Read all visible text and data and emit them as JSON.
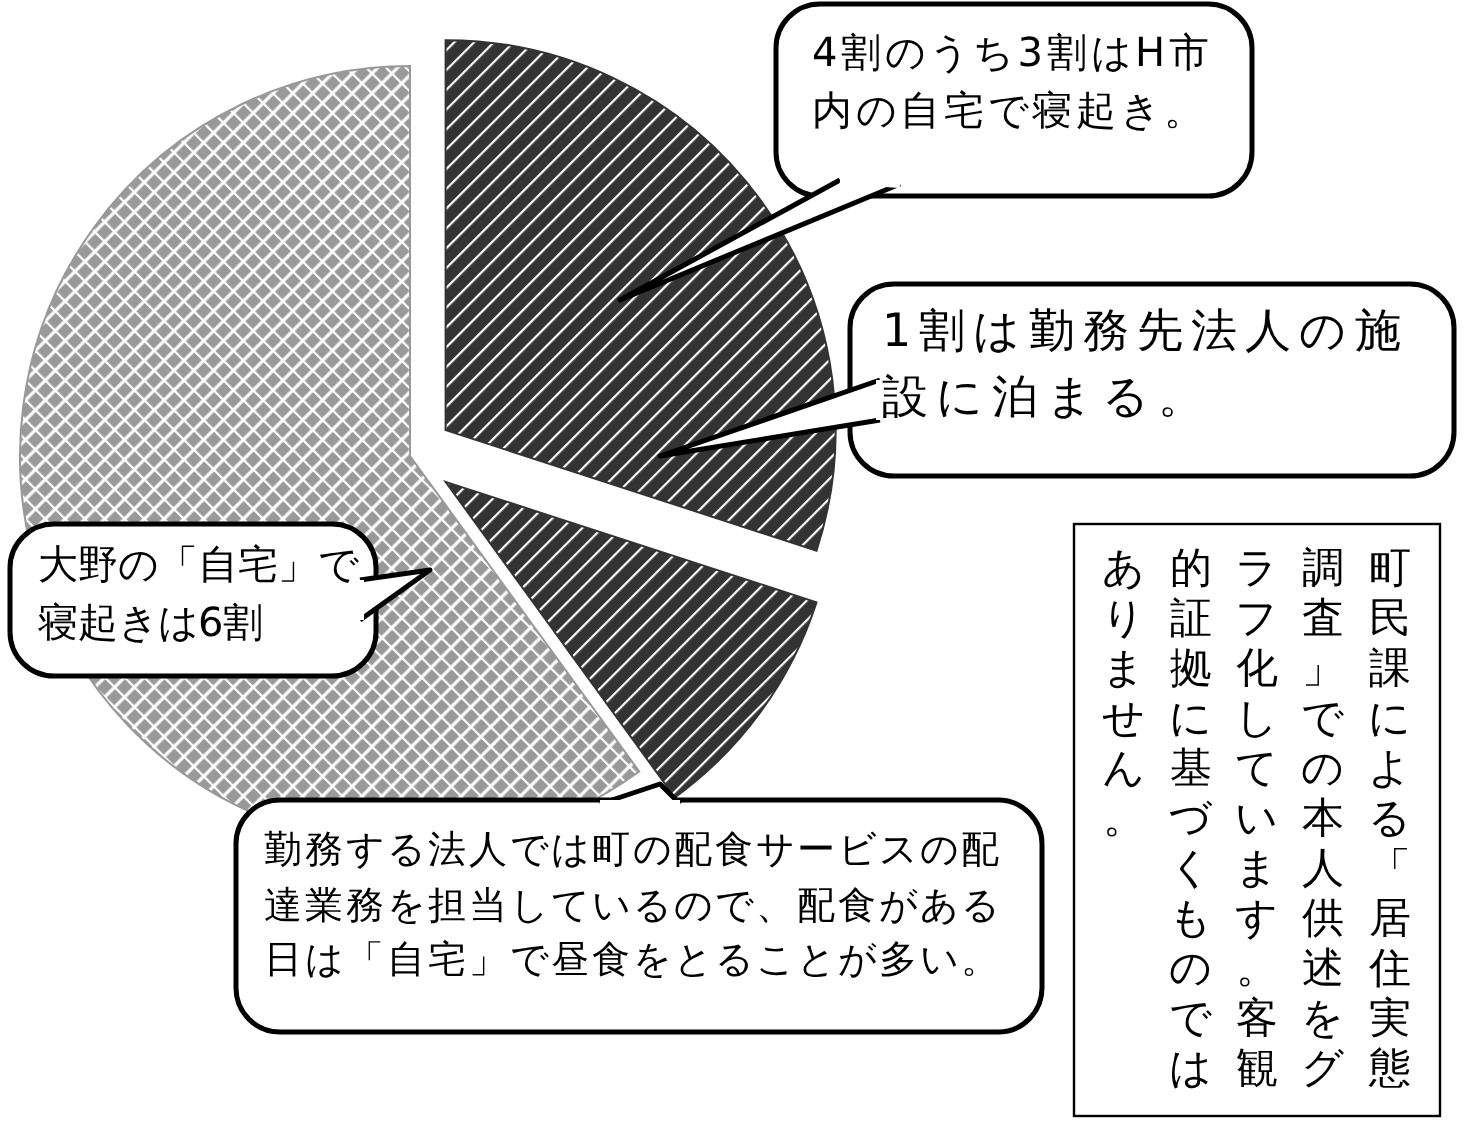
{
  "chart_data": {
    "type": "pie",
    "categories": [
      null,
      null,
      null
    ],
    "values": [
      30,
      10,
      60
    ],
    "colors": [
      "#333333",
      "#333333",
      "#999999"
    ],
    "annotations": [
      "4割のうち3割はH市内の自宅で寝起き。",
      "1割は勤務先法人の施設に泊まる。",
      "大野の「自宅」で寝起きは6割",
      "勤務する法人では町の配食サービスの配達業務を担当しているので、配食がある日は「自宅」で昼食をとることが多い。",
      "町民課による「居住実態調査」での本人供述をグラフ化しています。客観的証拠に基づくものではありません。"
    ]
  }
}
